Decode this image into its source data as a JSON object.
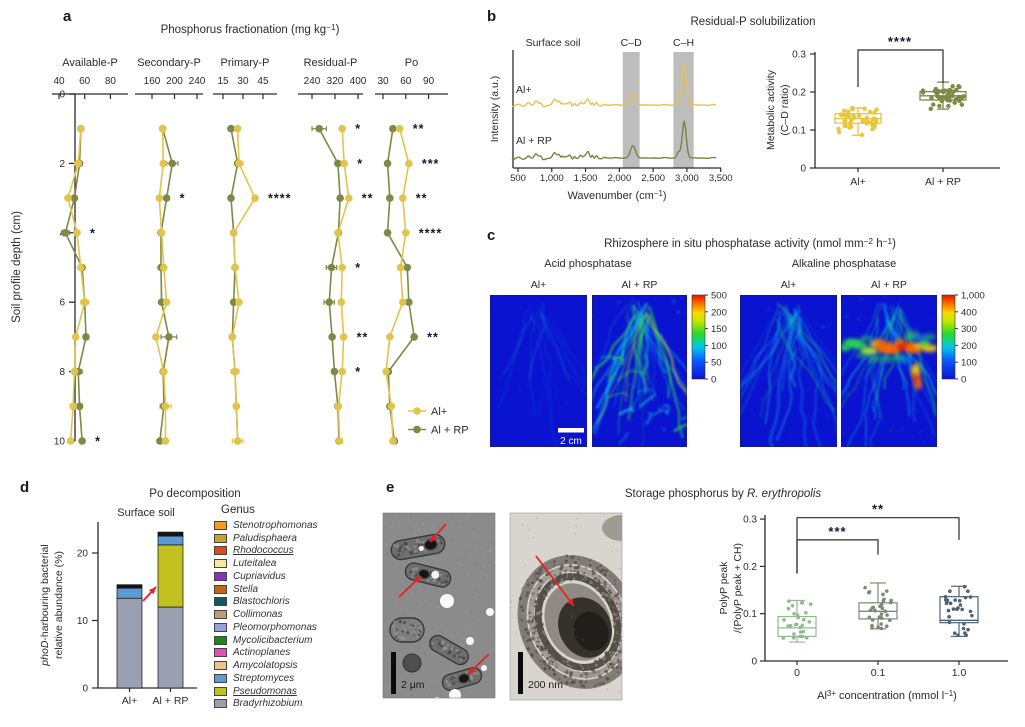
{
  "panels": {
    "a": {
      "label": "a",
      "title": [
        {
          "t": "Phosphorus fractionation (mg kg"
        },
        {
          "t": "−1",
          "sup": true
        },
        {
          "t": ")"
        }
      ],
      "ylabel": "Soil profile depth (cm)",
      "yticks": [
        "0",
        "2",
        "4",
        "6",
        "8",
        "10"
      ],
      "legend": [
        {
          "label": "Al+",
          "color": "#e2c44c"
        },
        {
          "label": "Al + RP",
          "color": "#7d8a45"
        }
      ],
      "chart_data": {
        "type": "line",
        "depths": [
          1,
          2,
          3,
          4,
          5,
          6,
          7,
          8,
          9,
          10
        ],
        "series_names": [
          "Al+",
          "Al + RP"
        ],
        "subplots": [
          {
            "title": "Available-P",
            "ticks": [
              40,
              60,
              80
            ],
            "al": [
              57,
              55,
              47,
              54,
              57,
              60,
              53,
              52,
              51,
              49
            ],
            "alrp": [
              57,
              56,
              52,
              45,
              58,
              60,
              61,
              55,
              56,
              58
            ],
            "al_err": [
              0,
              3,
              0,
              0,
              2,
              3,
              0,
              0,
              0,
              2
            ],
            "alrp_err": [
              2,
              0,
              0,
              3,
              2,
              0,
              2,
              3,
              2,
              0
            ],
            "sig": [
              {
                "depth": 4,
                "text": "*"
              },
              {
                "depth": 10,
                "text": "*"
              }
            ]
          },
          {
            "title": "Secondary-P",
            "ticks": [
              160,
              200,
              240
            ],
            "al": [
              179,
              180,
              173,
              177,
              181,
              186,
              167,
              181,
              184,
              184
            ],
            "alrp": [
              179,
              196,
              186,
              176,
              176,
              177,
              190,
              180,
              181,
              174
            ],
            "al_err": [
              0,
              0,
              0,
              0,
              0,
              0,
              0,
              0,
              10,
              0
            ],
            "alrp_err": [
              0,
              10,
              0,
              0,
              0,
              0,
              14,
              0,
              0,
              0
            ],
            "sig": [
              {
                "depth": 3,
                "text": "*"
              }
            ]
          },
          {
            "title": "Primary-P",
            "ticks": [
              15,
              30,
              45
            ],
            "al": [
              26,
              27,
              39,
              23,
              24,
              27,
              22,
              24,
              25,
              26
            ],
            "alrp": [
              21,
              26,
              21,
              23,
              24,
              23,
              22,
              24,
              25,
              26
            ],
            "al_err": [
              0,
              3,
              0,
              0,
              2,
              0,
              0,
              3,
              0,
              4
            ],
            "alrp_err": [
              2,
              0,
              0,
              0,
              0,
              0,
              0,
              0,
              0,
              0
            ],
            "sig": [
              {
                "depth": 3,
                "text": "****"
              }
            ]
          },
          {
            "title": "Residual-P",
            "ticks": [
              240,
              320,
              400
            ],
            "al": [
              345,
              352,
              368,
              330,
              345,
              342,
              350,
              345,
              332,
              336
            ],
            "alrp": [
              265,
              330,
              338,
              332,
              308,
              300,
              310,
              318,
              330,
              334
            ],
            "al_err": [
              0,
              0,
              0,
              0,
              0,
              0,
              0,
              0,
              0,
              0
            ],
            "alrp_err": [
              25,
              0,
              0,
              0,
              18,
              18,
              0,
              0,
              0,
              0
            ],
            "sig": [
              {
                "depth": 1,
                "text": "*"
              },
              {
                "depth": 2,
                "text": "*"
              },
              {
                "depth": 3,
                "text": "**"
              },
              {
                "depth": 5,
                "text": "*"
              },
              {
                "depth": 7,
                "text": "**"
              },
              {
                "depth": 8,
                "text": "*"
              }
            ]
          },
          {
            "title": "Po",
            "ticks": [
              30,
              60,
              90
            ],
            "al": [
              52,
              64,
              56,
              60,
              53,
              56,
              39,
              34,
              41,
              43
            ],
            "alrp": [
              43,
              36,
              39,
              36,
              62,
              64,
              71,
              37,
              39,
              45
            ],
            "al_err": [
              0,
              0,
              0,
              0,
              0,
              0,
              0,
              0,
              0,
              3
            ],
            "alrp_err": [
              0,
              0,
              0,
              0,
              0,
              0,
              0,
              0,
              0,
              0
            ],
            "sig": [
              {
                "depth": 1,
                "text": "**"
              },
              {
                "depth": 2,
                "text": "***"
              },
              {
                "depth": 3,
                "text": "**"
              },
              {
                "depth": 4,
                "text": "****"
              },
              {
                "depth": 7,
                "text": "**"
              }
            ]
          }
        ]
      }
    },
    "b": {
      "label": "b",
      "title": "Residual-P solubilization",
      "spectra": {
        "corner_label": "Surface soil",
        "ylabel": "Intensity (a.u.)",
        "xlabel": [
          {
            "t": "Wavenumber (cm"
          },
          {
            "t": "−1",
            "sup": true
          },
          {
            "t": ")"
          }
        ],
        "xticks": [
          "500",
          "1,000",
          "1,500",
          "2,000",
          "2,500",
          "3,000",
          "3,500"
        ],
        "xtick_values": [
          500,
          1000,
          1500,
          2000,
          2500,
          3000,
          3500
        ],
        "bands": [
          {
            "label": "C–D",
            "from": 2050,
            "to": 2300
          },
          {
            "label": "C–H",
            "from": 2800,
            "to": 3100
          }
        ],
        "traces": [
          {
            "label": "Al+",
            "color": "#e2c44c",
            "peaks": [
              [
                655,
                2.5,
                22
              ],
              [
                760,
                2,
                18
              ],
              [
                840,
                2.5,
                16
              ],
              [
                1035,
                5,
                26
              ],
              [
                1110,
                3.5,
                18
              ],
              [
                1160,
                2.5,
                14
              ],
              [
                1270,
                3,
                18
              ],
              [
                1335,
                2.5,
                14
              ],
              [
                1425,
                3.5,
                18
              ],
              [
                1540,
                4.5,
                20
              ],
              [
                1600,
                3.5,
                14
              ],
              [
                1660,
                2.5,
                14
              ],
              [
                2200,
                10.5,
                38
              ],
              [
                2875,
                7,
                22
              ],
              [
                2960,
                41,
                30
              ]
            ]
          },
          {
            "label": "Al + RP",
            "color": "#77863f",
            "peaks": [
              [
                655,
                2,
                22
              ],
              [
                760,
                2,
                18
              ],
              [
                840,
                2.5,
                16
              ],
              [
                1035,
                4.5,
                26
              ],
              [
                1110,
                3,
                18
              ],
              [
                1160,
                2.5,
                14
              ],
              [
                1270,
                3,
                18
              ],
              [
                1335,
                2.5,
                14
              ],
              [
                1425,
                3.5,
                18
              ],
              [
                1540,
                5,
                20
              ],
              [
                1600,
                4,
                14
              ],
              [
                1660,
                2.5,
                14
              ],
              [
                2200,
                12,
                38
              ],
              [
                2875,
                6,
                22
              ],
              [
                2960,
                36,
                30
              ]
            ]
          }
        ]
      },
      "boxplot": {
        "ylabel": [
          "Metabolic activity",
          "(C–D ratio)"
        ],
        "yticks": [
          "0",
          "0.1",
          "0.2",
          "0.3"
        ],
        "sig": "****",
        "chart_data": {
          "type": "box",
          "groups": [
            {
              "label": "Al+",
              "color": "#e8c73c",
              "median": 0.13,
              "q1": 0.118,
              "q3": 0.143,
              "lo": 0.086,
              "hi": 0.158,
              "n": 44
            },
            {
              "label": "Al + RP",
              "color": "#7d8a45",
              "median": 0.19,
              "q1": 0.179,
              "q3": 0.201,
              "lo": 0.155,
              "hi": 0.226,
              "n": 40
            }
          ]
        }
      }
    },
    "c": {
      "label": "c",
      "title": [
        {
          "t": "Rhizosphere in situ phosphatase activity (nmol mm"
        },
        {
          "t": "−2",
          "sup": true
        },
        {
          "t": " h"
        },
        {
          "t": "−1",
          "sup": true
        },
        {
          "t": ")"
        }
      ],
      "groups": [
        {
          "title": "Acid phosphatase",
          "images": [
            {
              "label": "Al+",
              "pattern": "faint"
            },
            {
              "label": "Al + RP",
              "pattern": "dense"
            }
          ],
          "colorbar": [
            "500",
            "200",
            "150",
            "100",
            "50",
            "0"
          ],
          "scalebar": "2 cm"
        },
        {
          "title": "Alkaline phosphatase",
          "images": [
            {
              "label": "Al+",
              "pattern": "medium"
            },
            {
              "label": "Al + RP",
              "pattern": "hotband"
            }
          ],
          "colorbar": [
            "1,000",
            "400",
            "300",
            "200",
            "100",
            "0"
          ]
        }
      ]
    },
    "d": {
      "label": "d",
      "title": "Po decomposition",
      "subtitle": "Surface soil",
      "ylabel_line1": [
        {
          "t": "phoD",
          "i": true
        },
        {
          "t": "-harbouring bacterial"
        }
      ],
      "ylabel_line2": [
        {
          "t": "relative abundance (%)"
        }
      ],
      "yticks": [
        0,
        10,
        20
      ],
      "legend_title": "Genus",
      "chart_data": {
        "type": "stacked-bar",
        "categories": [
          "Al+",
          "Al + RP"
        ],
        "ymax": 25,
        "bars": [
          {
            "label": "Al+",
            "segments": [
              {
                "genus": "Bradyrhizobium",
                "value": 13.3,
                "color": "#9aa0b2"
              },
              {
                "genus": "Streptomyces",
                "value": 1.5,
                "color": "#5b9bd5"
              },
              {
                "genus": "other",
                "value": 0.5,
                "color": "#141414"
              }
            ]
          },
          {
            "label": "Al + RP",
            "segments": [
              {
                "genus": "Bradyrhizobium",
                "value": 12.0,
                "color": "#9aa0b2"
              },
              {
                "genus": "Pseudomonas",
                "value": 9.2,
                "color": "#c3c11f"
              },
              {
                "genus": "Streptomyces",
                "value": 1.3,
                "color": "#5b9bd5"
              },
              {
                "genus": "other",
                "value": 0.6,
                "color": "#141414"
              }
            ]
          }
        ]
      },
      "genera": [
        {
          "name": "Stenotrophomonas",
          "color": "#f59b22"
        },
        {
          "name": "Paludisphaera",
          "color": "#c9a227"
        },
        {
          "name": "Rhodococcus",
          "color": "#e04a17",
          "underline": true
        },
        {
          "name": "Luteitalea",
          "color": "#f5e79e"
        },
        {
          "name": "Cupriavidus",
          "color": "#8a30c0"
        },
        {
          "name": "Stella",
          "color": "#c06818"
        },
        {
          "name": "Blastochloris",
          "color": "#15555c"
        },
        {
          "name": "Collimonas",
          "color": "#c49a6c"
        },
        {
          "name": "Pleomorphomonas",
          "color": "#96a0e0"
        },
        {
          "name": "Mycolicibacterium",
          "color": "#188a18"
        },
        {
          "name": "Actinoplanes",
          "color": "#e54fb2"
        },
        {
          "name": "Amycolatopsis",
          "color": "#f3c18c"
        },
        {
          "name": "Streptomyces",
          "color": "#5b9bd5"
        },
        {
          "name": "Pseudomonas",
          "color": "#c3c11f",
          "underline": true
        },
        {
          "name": "Bradyrhizobium",
          "color": "#9aa0b2"
        }
      ]
    },
    "e": {
      "label": "e",
      "title": [
        {
          "t": "Storage phosphorus by "
        },
        {
          "t": "R. erythropolis",
          "i": true
        }
      ],
      "tem": [
        {
          "scalebar": "2 μm"
        },
        {
          "scalebar": "200 nm"
        }
      ],
      "boxplot": {
        "ylabel": [
          "PolyP peak",
          "/(PolyP peak + CH)"
        ],
        "yticks": [
          "0",
          "0.1",
          "0.2",
          "0.3"
        ],
        "xlabel": [
          {
            "t": "Al"
          },
          {
            "t": "3+",
            "sup": true
          },
          {
            "t": " concentration (mmol l"
          },
          {
            "t": "−1",
            "sup": true
          },
          {
            "t": ")"
          }
        ],
        "chart_data": {
          "type": "box",
          "groups": [
            {
              "label": "0",
              "color": "#93b98e",
              "median": 0.07,
              "q1": 0.052,
              "q3": 0.094,
              "lo": 0.04,
              "hi": 0.128,
              "n": 28
            },
            {
              "label": "0.1",
              "color": "#788c74",
              "median": 0.105,
              "q1": 0.089,
              "q3": 0.123,
              "lo": 0.068,
              "hi": 0.165,
              "n": 30
            },
            {
              "label": "1.0",
              "color": "#4f6273",
              "median": 0.086,
              "q1": 0.081,
              "q3": 0.136,
              "lo": 0.052,
              "hi": 0.158,
              "n": 30
            }
          ],
          "sig": [
            {
              "a": 0,
              "b": 1,
              "y": 0.256,
              "text": "***"
            },
            {
              "a": 0,
              "b": 2,
              "y": 0.303,
              "text": "**"
            }
          ]
        }
      }
    }
  }
}
